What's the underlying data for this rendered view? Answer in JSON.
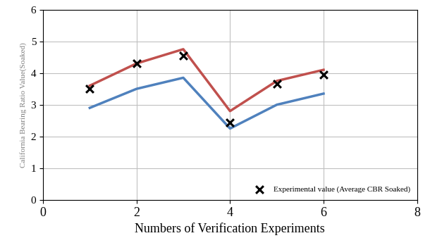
{
  "chart_data": {
    "type": "line",
    "x_label": "Numbers of Verification Experiments",
    "y_label": "California Bearing Ratio Value(Soaked)",
    "xlim": [
      0,
      8
    ],
    "xticks": [
      0,
      2,
      4,
      6,
      8
    ],
    "ylim": [
      0,
      6
    ],
    "yticks": [
      0,
      1,
      2,
      3,
      4,
      5,
      6
    ],
    "grid": true,
    "legend": "lower right",
    "series": [
      {
        "color": "#c0504d",
        "marker": "none",
        "line_style": "solid",
        "x": [
          1,
          2,
          3,
          4,
          5,
          6
        ],
        "values": [
          3.6,
          4.3,
          4.75,
          2.8,
          3.75,
          4.1
        ]
      },
      {
        "color": "#4f81bd",
        "marker": "none",
        "line_style": "solid",
        "x": [
          1,
          2,
          3,
          4,
          5,
          6
        ],
        "values": [
          2.9,
          3.5,
          3.85,
          2.25,
          3.0,
          3.35
        ]
      },
      {
        "name": "Experimental value (Average CBR Soaked)",
        "color": "#000000",
        "type": "scatter",
        "marker": "x",
        "line_style": "none",
        "x": [
          1,
          2,
          3,
          4,
          5,
          6
        ],
        "values": [
          3.5,
          4.3,
          4.55,
          2.45,
          3.65,
          3.95
        ]
      }
    ]
  }
}
